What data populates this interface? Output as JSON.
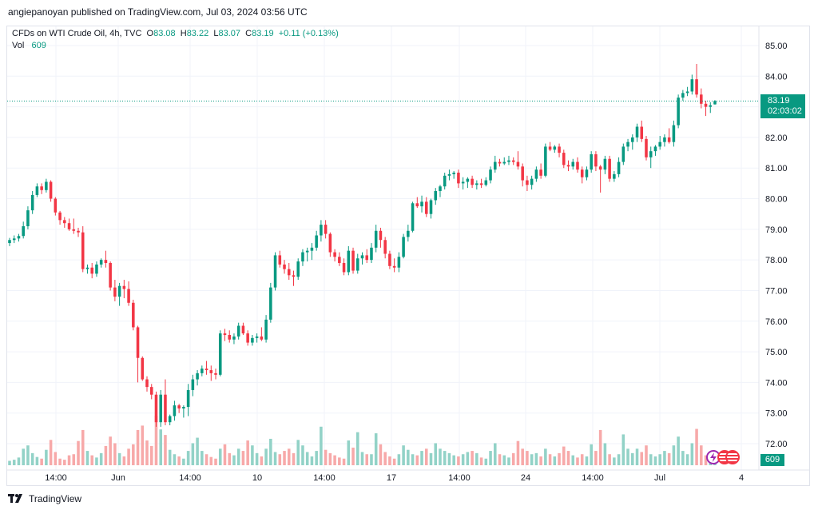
{
  "header": {
    "published": "angiepanoyan published on TradingView.com, Jul 03, 2024 03:56 UTC"
  },
  "legend": {
    "symbol": "CFDs on WTI Crude Oil, 4h, TVC",
    "o_label": "O",
    "o_value": "83.08",
    "h_label": "H",
    "h_value": "83.22",
    "l_label": "L",
    "l_value": "83.07",
    "c_label": "C",
    "c_value": "83.19",
    "change": "+0.11 (+0.13%)",
    "vol_label": "Vol",
    "vol_value": "609"
  },
  "price_badge": {
    "price": "83.19",
    "countdown": "02:03:02"
  },
  "volume_badge": {
    "value": "609"
  },
  "footer": {
    "brand": "TradingView"
  },
  "colors": {
    "up": "#089981",
    "down": "#f23645",
    "vol_up": "#92d2c7",
    "vol_down": "#f7a9a9",
    "grid": "#f0f3fa"
  },
  "icons": [
    "lightning-event-icon",
    "us-flag-event-icon",
    "us-flag-event-icon"
  ],
  "chart_data": {
    "type": "candlestick",
    "title": "CFDs on WTI Crude Oil, 4h, TVC",
    "y_axis": {
      "ticks": [
        "72.00",
        "73.00",
        "74.00",
        "75.00",
        "76.00",
        "77.00",
        "78.00",
        "79.00",
        "80.00",
        "81.00",
        "82.00",
        "83.00",
        "84.00",
        "85.00"
      ],
      "range": [
        71.4,
        85.6
      ],
      "position": "right"
    },
    "x_axis": {
      "ticks": [
        "14:00",
        "Jun",
        "14:00",
        "10",
        "14:00",
        "17",
        "14:00",
        "24",
        "14:00",
        "Jul",
        "4"
      ]
    },
    "last_price": 83.19,
    "volume_last": 609,
    "candles_ohlcv": [
      [
        78.55,
        78.72,
        78.45,
        78.65,
        8
      ],
      [
        78.65,
        78.8,
        78.55,
        78.7,
        10
      ],
      [
        78.7,
        78.85,
        78.6,
        78.78,
        14
      ],
      [
        78.78,
        79.25,
        78.7,
        79.1,
        30
      ],
      [
        79.1,
        79.75,
        79.0,
        79.62,
        36
      ],
      [
        79.62,
        80.25,
        79.5,
        80.12,
        22
      ],
      [
        80.12,
        80.5,
        80.05,
        80.4,
        15
      ],
      [
        80.4,
        80.5,
        80.15,
        80.28,
        12
      ],
      [
        80.28,
        80.65,
        80.2,
        80.55,
        28
      ],
      [
        80.55,
        80.6,
        79.9,
        80.0,
        46
      ],
      [
        80.0,
        80.05,
        79.45,
        79.55,
        24
      ],
      [
        79.55,
        79.6,
        79.15,
        79.3,
        12
      ],
      [
        79.3,
        79.4,
        79.05,
        79.2,
        10
      ],
      [
        79.2,
        79.35,
        78.95,
        79.0,
        18
      ],
      [
        79.0,
        79.35,
        78.85,
        78.95,
        20
      ],
      [
        78.95,
        79.05,
        78.75,
        78.9,
        44
      ],
      [
        78.9,
        79.1,
        77.6,
        77.7,
        64
      ],
      [
        77.7,
        77.85,
        77.55,
        77.75,
        26
      ],
      [
        77.75,
        77.9,
        77.4,
        77.55,
        18
      ],
      [
        77.55,
        77.95,
        77.45,
        77.85,
        14
      ],
      [
        77.85,
        78.05,
        77.75,
        78.0,
        22
      ],
      [
        78.0,
        78.3,
        77.75,
        77.9,
        35
      ],
      [
        77.9,
        77.95,
        77.0,
        77.1,
        52
      ],
      [
        77.1,
        77.35,
        76.65,
        76.8,
        40
      ],
      [
        76.8,
        77.25,
        76.5,
        77.15,
        22
      ],
      [
        77.15,
        77.35,
        76.75,
        77.05,
        16
      ],
      [
        77.05,
        77.3,
        76.5,
        76.6,
        30
      ],
      [
        76.6,
        76.7,
        75.7,
        75.8,
        38
      ],
      [
        75.8,
        75.85,
        74.0,
        74.8,
        64
      ],
      [
        74.8,
        74.85,
        74.05,
        74.1,
        72
      ],
      [
        74.1,
        74.2,
        73.7,
        73.85,
        45
      ],
      [
        73.85,
        73.95,
        73.45,
        73.6,
        35
      ],
      [
        73.6,
        73.7,
        72.55,
        72.7,
        90
      ],
      [
        72.7,
        73.75,
        72.55,
        73.6,
        65
      ],
      [
        73.6,
        74.1,
        72.6,
        72.7,
        55
      ],
      [
        72.7,
        72.95,
        72.6,
        72.9,
        28
      ],
      [
        72.9,
        73.4,
        72.75,
        73.25,
        20
      ],
      [
        73.25,
        73.3,
        73.0,
        73.15,
        16
      ],
      [
        73.15,
        73.25,
        72.85,
        73.2,
        12
      ],
      [
        73.2,
        73.95,
        72.9,
        73.75,
        26
      ],
      [
        73.75,
        74.25,
        73.55,
        74.1,
        40
      ],
      [
        74.1,
        74.4,
        73.9,
        74.3,
        50
      ],
      [
        74.3,
        74.55,
        74.2,
        74.45,
        26
      ],
      [
        74.45,
        74.7,
        74.25,
        74.4,
        20
      ],
      [
        74.4,
        74.55,
        74.05,
        74.3,
        15
      ],
      [
        74.3,
        74.45,
        74.1,
        74.25,
        12
      ],
      [
        74.25,
        75.7,
        74.2,
        75.6,
        30
      ],
      [
        75.6,
        75.75,
        75.35,
        75.55,
        38
      ],
      [
        75.55,
        75.7,
        75.3,
        75.4,
        22
      ],
      [
        75.4,
        75.6,
        75.25,
        75.5,
        18
      ],
      [
        75.5,
        75.95,
        75.4,
        75.85,
        30
      ],
      [
        75.85,
        75.95,
        75.55,
        75.6,
        26
      ],
      [
        75.6,
        75.7,
        75.2,
        75.3,
        45
      ],
      [
        75.3,
        75.55,
        75.2,
        75.45,
        36
      ],
      [
        75.45,
        75.6,
        75.3,
        75.5,
        22
      ],
      [
        75.5,
        75.8,
        75.35,
        75.4,
        16
      ],
      [
        75.4,
        76.2,
        75.3,
        76.05,
        30
      ],
      [
        76.05,
        77.25,
        75.95,
        77.1,
        48
      ],
      [
        77.1,
        78.25,
        77.0,
        78.15,
        24
      ],
      [
        78.15,
        78.3,
        77.75,
        77.85,
        20
      ],
      [
        77.85,
        78.0,
        77.55,
        77.7,
        26
      ],
      [
        77.7,
        77.9,
        77.35,
        77.5,
        30
      ],
      [
        77.5,
        77.65,
        77.15,
        77.45,
        22
      ],
      [
        77.45,
        78.05,
        77.35,
        77.95,
        46
      ],
      [
        77.95,
        78.35,
        77.8,
        78.25,
        36
      ],
      [
        78.25,
        78.4,
        77.95,
        78.3,
        24
      ],
      [
        78.3,
        78.55,
        78.0,
        78.4,
        16
      ],
      [
        78.4,
        78.95,
        78.3,
        78.8,
        26
      ],
      [
        78.8,
        79.3,
        78.6,
        79.15,
        70
      ],
      [
        79.15,
        79.3,
        78.7,
        78.85,
        28
      ],
      [
        78.85,
        78.9,
        78.1,
        78.25,
        22
      ],
      [
        78.25,
        78.35,
        77.95,
        78.1,
        18
      ],
      [
        78.1,
        78.25,
        77.8,
        77.9,
        14
      ],
      [
        77.9,
        78.05,
        77.5,
        77.6,
        12
      ],
      [
        77.6,
        78.45,
        77.5,
        78.3,
        45
      ],
      [
        78.3,
        78.4,
        77.55,
        77.65,
        32
      ],
      [
        77.65,
        78.2,
        77.55,
        78.05,
        60
      ],
      [
        78.05,
        78.25,
        77.85,
        78.15,
        24
      ],
      [
        78.15,
        78.35,
        77.9,
        78.0,
        20
      ],
      [
        78.0,
        78.55,
        77.9,
        78.4,
        20
      ],
      [
        78.4,
        79.15,
        78.25,
        78.95,
        58
      ],
      [
        78.95,
        79.05,
        78.4,
        78.65,
        38
      ],
      [
        78.65,
        78.75,
        78.05,
        78.2,
        24
      ],
      [
        78.2,
        78.3,
        77.7,
        77.8,
        16
      ],
      [
        77.8,
        78.05,
        77.6,
        77.75,
        12
      ],
      [
        77.75,
        78.25,
        77.6,
        78.1,
        20
      ],
      [
        78.1,
        78.85,
        78.05,
        78.75,
        36
      ],
      [
        78.75,
        79.15,
        78.6,
        78.95,
        28
      ],
      [
        78.95,
        79.9,
        78.9,
        79.85,
        20
      ],
      [
        79.85,
        80.05,
        79.7,
        79.75,
        18
      ],
      [
        79.75,
        80.1,
        79.55,
        79.9,
        26
      ],
      [
        79.9,
        80.05,
        79.4,
        79.5,
        30
      ],
      [
        79.5,
        80.0,
        79.35,
        79.95,
        22
      ],
      [
        79.95,
        80.35,
        79.8,
        80.25,
        40
      ],
      [
        80.25,
        80.45,
        80.05,
        80.4,
        30
      ],
      [
        80.4,
        80.85,
        80.3,
        80.75,
        26
      ],
      [
        80.75,
        80.95,
        80.6,
        80.8,
        22
      ],
      [
        80.8,
        80.9,
        80.65,
        80.85,
        18
      ],
      [
        80.85,
        80.95,
        80.35,
        80.5,
        16
      ],
      [
        80.5,
        80.7,
        80.3,
        80.55,
        20
      ],
      [
        80.55,
        80.7,
        80.35,
        80.65,
        24
      ],
      [
        80.65,
        80.75,
        80.35,
        80.45,
        26
      ],
      [
        80.45,
        80.6,
        80.3,
        80.5,
        22
      ],
      [
        80.5,
        80.65,
        80.35,
        80.45,
        14
      ],
      [
        80.45,
        80.7,
        80.4,
        80.6,
        12
      ],
      [
        80.6,
        81.05,
        80.5,
        80.95,
        26
      ],
      [
        80.95,
        81.4,
        80.85,
        81.2,
        40
      ],
      [
        81.2,
        81.3,
        81.05,
        81.15,
        20
      ],
      [
        81.15,
        81.35,
        81.1,
        81.2,
        18
      ],
      [
        81.2,
        81.4,
        81.1,
        81.25,
        14
      ],
      [
        81.25,
        81.35,
        81.1,
        81.2,
        22
      ],
      [
        81.2,
        81.55,
        80.95,
        81.05,
        44
      ],
      [
        81.05,
        81.15,
        80.4,
        80.6,
        30
      ],
      [
        80.6,
        80.75,
        80.25,
        80.45,
        26
      ],
      [
        80.45,
        80.75,
        80.3,
        80.65,
        20
      ],
      [
        80.65,
        81.05,
        80.55,
        80.95,
        22
      ],
      [
        80.95,
        81.15,
        80.65,
        80.75,
        16
      ],
      [
        80.75,
        81.8,
        80.7,
        81.7,
        30
      ],
      [
        81.7,
        81.85,
        81.55,
        81.6,
        20
      ],
      [
        81.6,
        81.75,
        81.5,
        81.7,
        16
      ],
      [
        81.7,
        81.8,
        81.35,
        81.5,
        22
      ],
      [
        81.5,
        81.6,
        81.0,
        81.1,
        34
      ],
      [
        81.1,
        81.25,
        80.9,
        81.05,
        26
      ],
      [
        81.05,
        81.3,
        80.95,
        81.2,
        18
      ],
      [
        81.2,
        81.35,
        80.85,
        80.95,
        14
      ],
      [
        80.95,
        81.05,
        80.5,
        80.7,
        20
      ],
      [
        80.7,
        81.05,
        80.6,
        80.95,
        16
      ],
      [
        80.95,
        81.55,
        80.85,
        81.45,
        38
      ],
      [
        81.45,
        81.55,
        80.9,
        81.05,
        26
      ],
      [
        81.05,
        81.1,
        80.2,
        80.95,
        64
      ],
      [
        80.95,
        81.4,
        80.8,
        81.3,
        40
      ],
      [
        81.3,
        81.4,
        80.55,
        80.65,
        20
      ],
      [
        80.65,
        80.9,
        80.55,
        80.8,
        14
      ],
      [
        80.8,
        81.35,
        80.7,
        81.2,
        20
      ],
      [
        81.2,
        81.8,
        81.1,
        81.7,
        56
      ],
      [
        81.7,
        81.95,
        81.55,
        81.85,
        30
      ],
      [
        81.85,
        82.1,
        81.6,
        82.0,
        22
      ],
      [
        82.0,
        82.45,
        81.85,
        82.35,
        30
      ],
      [
        82.35,
        82.55,
        81.85,
        81.95,
        24
      ],
      [
        81.95,
        82.05,
        81.25,
        81.35,
        36
      ],
      [
        81.35,
        81.7,
        81.0,
        81.55,
        20
      ],
      [
        81.55,
        81.75,
        81.4,
        81.7,
        16
      ],
      [
        81.7,
        82.05,
        81.6,
        81.85,
        20
      ],
      [
        81.85,
        82.1,
        81.7,
        82.0,
        26
      ],
      [
        82.0,
        82.3,
        81.8,
        81.85,
        22
      ],
      [
        81.85,
        82.55,
        81.7,
        82.4,
        36
      ],
      [
        82.4,
        83.4,
        82.3,
        83.3,
        52
      ],
      [
        83.3,
        83.55,
        83.2,
        83.45,
        26
      ],
      [
        83.45,
        83.65,
        83.35,
        83.5,
        20
      ],
      [
        83.5,
        84.05,
        83.4,
        83.9,
        40
      ],
      [
        83.9,
        84.4,
        83.3,
        83.4,
        66
      ],
      [
        83.4,
        83.6,
        82.95,
        83.1,
        36
      ],
      [
        83.1,
        83.2,
        82.7,
        83.0,
        18
      ],
      [
        83.0,
        83.15,
        82.8,
        83.05,
        12
      ],
      [
        83.08,
        83.22,
        83.07,
        83.19,
        5
      ]
    ]
  }
}
